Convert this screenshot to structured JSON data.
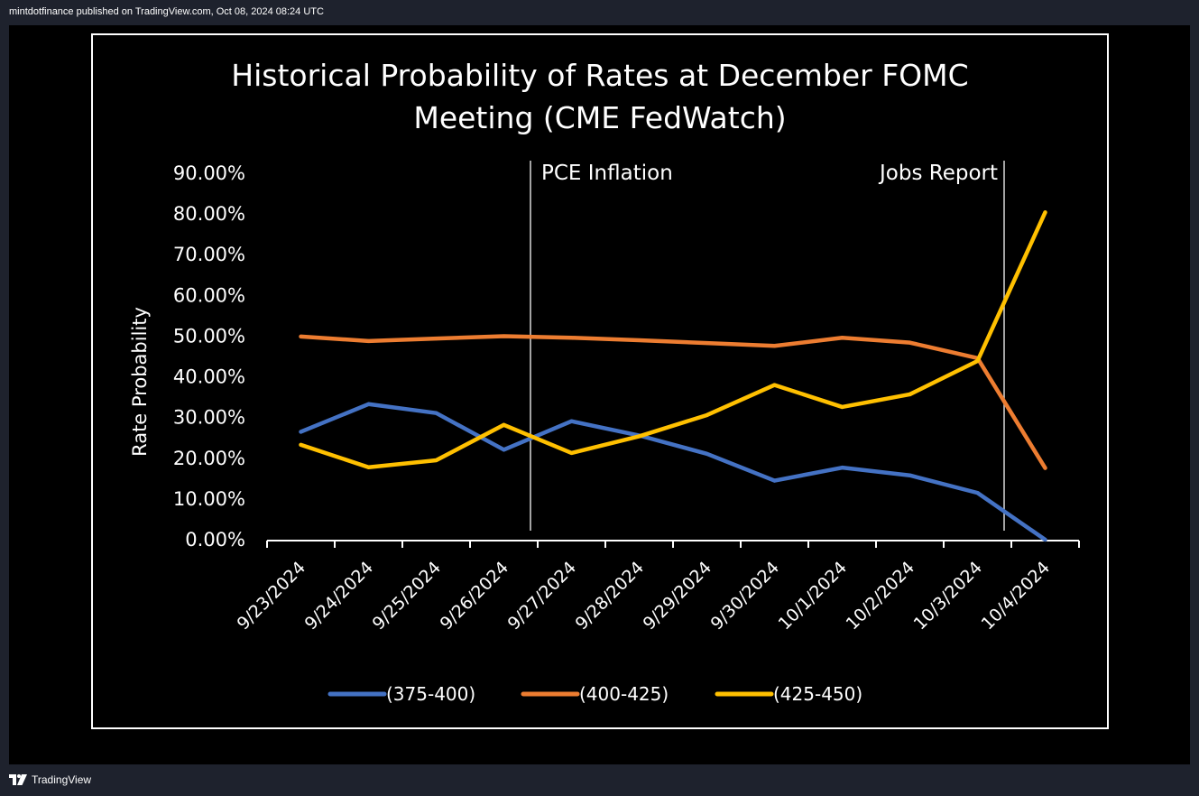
{
  "header": {
    "publisher": "mintdotfinance",
    "published_on": "published on TradingView.com, Oct 08, 2024 08:24 UTC"
  },
  "footer": {
    "brand": "TradingView"
  },
  "colors": {
    "background": "#000000",
    "frame": "#ffffff",
    "series_375_400": "#4472c4",
    "series_400_425": "#ed7d31",
    "series_425_450": "#ffc000"
  },
  "chart_data": {
    "type": "line",
    "title_line1": "Historical Probability of Rates at December FOMC",
    "title_line2": "Meeting (CME FedWatch)",
    "xlabel": "",
    "ylabel": "Rate Probability",
    "ylim": [
      0,
      90
    ],
    "yticks": [
      "0.00%",
      "10.00%",
      "20.00%",
      "30.00%",
      "40.00%",
      "50.00%",
      "60.00%",
      "70.00%",
      "80.00%",
      "90.00%"
    ],
    "categories": [
      "9/23/2024",
      "9/24/2024",
      "9/25/2024",
      "9/26/2024",
      "9/27/2024",
      "9/28/2024",
      "9/29/2024",
      "9/30/2024",
      "10/1/2024",
      "10/2/2024",
      "10/3/2024",
      "10/4/2024"
    ],
    "series": [
      {
        "name": "(375-400)",
        "color": "#4472c4",
        "values": [
          26.5,
          33.3,
          31.1,
          22.1,
          29.1,
          25.6,
          21.1,
          14.5,
          17.7,
          15.8,
          11.5,
          0.0
        ]
      },
      {
        "name": "(400-425)",
        "color": "#ed7d31",
        "values": [
          49.9,
          48.8,
          49.4,
          50.0,
          49.6,
          49.0,
          48.3,
          47.6,
          49.6,
          48.4,
          44.6,
          17.6
        ]
      },
      {
        "name": "(425-450)",
        "color": "#ffc000",
        "values": [
          23.3,
          17.8,
          19.5,
          28.2,
          21.3,
          25.4,
          30.6,
          38.0,
          32.6,
          35.7,
          43.9,
          80.4
        ]
      }
    ],
    "annotations": [
      {
        "text": "PCE Inflation",
        "x_after": "9/26/2024"
      },
      {
        "text": "Jobs Report",
        "x_after": "10/3/2024"
      }
    ],
    "grid": false,
    "legend": "bottom"
  }
}
